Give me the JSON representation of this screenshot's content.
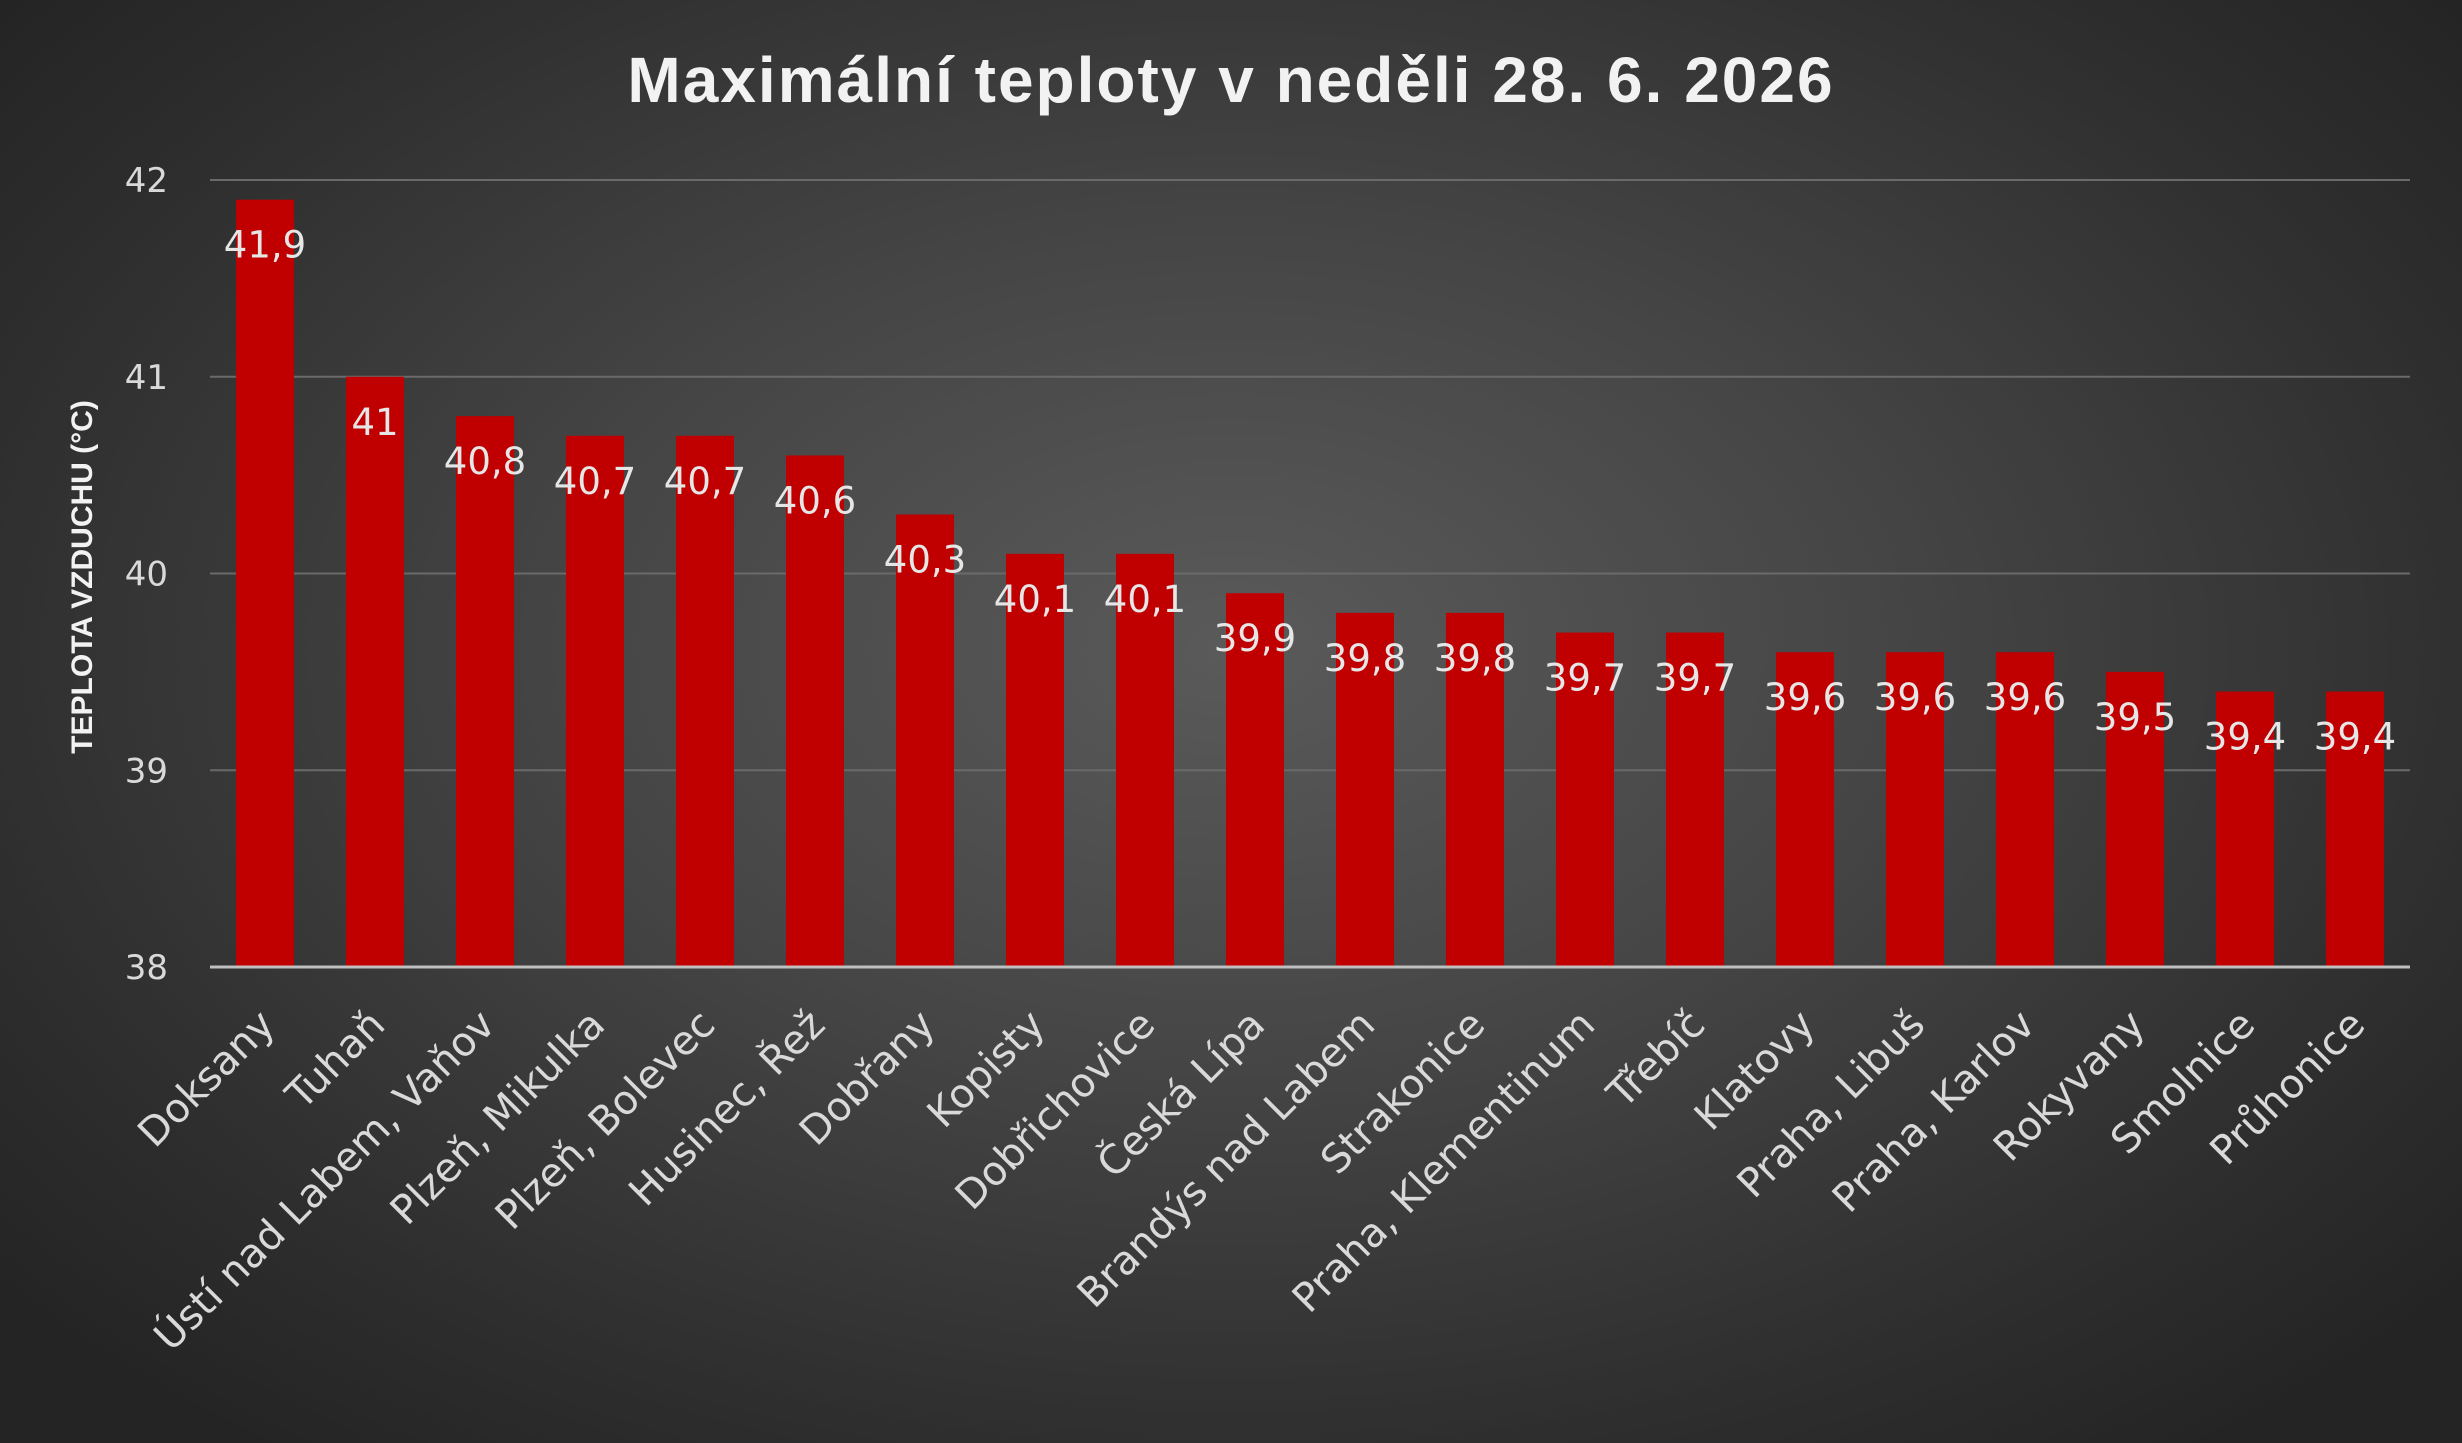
{
  "chart_data": {
    "type": "bar",
    "title": "Maximální teploty v neděli 28. 6. 2026",
    "xlabel": "",
    "ylabel": "TEPLOTA VZDUCHU (°C)",
    "ylim": [
      38,
      42
    ],
    "yticks": [
      "38",
      "39",
      "40",
      "41",
      "42"
    ],
    "grid": true,
    "bar_color": "#c00000",
    "categories": [
      "Doksany",
      "Tuhaň",
      "Ústí nad Labem, Vaňov",
      "Plzeň, Mikulka",
      "Plzeň, Bolevec",
      "Husinec, Řež",
      "Dobřany",
      "Kopisty",
      "Dobřichovice",
      "Česká Lípa",
      "Brandýs nad Labem",
      "Strakonice",
      "Praha, Klementinum",
      "Třebíč",
      "Klatovy",
      "Praha, Libuš",
      "Praha, Karlov",
      "Rokyvany",
      "Smolnice",
      "Průhonice"
    ],
    "values": [
      41.9,
      41,
      40.8,
      40.7,
      40.7,
      40.6,
      40.3,
      40.1,
      40.1,
      39.9,
      39.8,
      39.8,
      39.7,
      39.7,
      39.6,
      39.6,
      39.6,
      39.5,
      39.4,
      39.4
    ],
    "data_labels": [
      "41,9",
      "41",
      "40,8",
      "40,7",
      "40,7",
      "40,6",
      "40,3",
      "40,1",
      "40,1",
      "39,9",
      "39,8",
      "39,8",
      "39,7",
      "39,7",
      "39,6",
      "39,6",
      "39,6",
      "39,5",
      "39,4",
      "39,4"
    ]
  }
}
